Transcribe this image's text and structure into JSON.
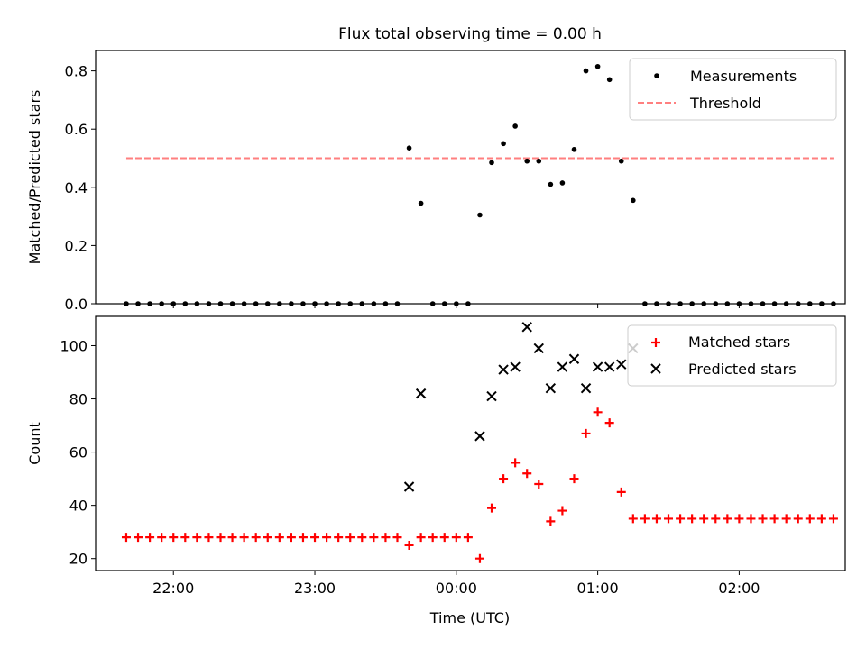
{
  "title": "Flux total observing time = 0.00 h",
  "chart_data": [
    {
      "type": "scatter",
      "panel": "top",
      "title": "Flux total observing time = 0.00 h",
      "xlabel": "",
      "ylabel": "Matched/Predicted stars",
      "ylim": [
        0,
        0.87
      ],
      "yticks": [
        0.0,
        0.2,
        0.4,
        0.6,
        0.8
      ],
      "ytick_labels": [
        "0.0",
        "0.2",
        "0.4",
        "0.6",
        "0.8"
      ],
      "legend": {
        "position": "top-right",
        "entries": [
          "Measurements",
          "Threshold"
        ]
      },
      "threshold": {
        "name": "Threshold",
        "value": 0.5,
        "color": "#ff7f7f",
        "style": "dashed",
        "x_range": [
          "21:40",
          "26:40"
        ]
      },
      "series": [
        {
          "name": "Measurements",
          "marker": "dot",
          "color": "#000000",
          "points": [
            [
              "21:40",
              0
            ],
            [
              "21:45",
              0
            ],
            [
              "21:50",
              0
            ],
            [
              "21:55",
              0
            ],
            [
              "22:00",
              0
            ],
            [
              "22:05",
              0
            ],
            [
              "22:10",
              0
            ],
            [
              "22:15",
              0
            ],
            [
              "22:20",
              0
            ],
            [
              "22:25",
              0
            ],
            [
              "22:30",
              0
            ],
            [
              "22:35",
              0
            ],
            [
              "22:40",
              0
            ],
            [
              "22:45",
              0
            ],
            [
              "22:50",
              0
            ],
            [
              "22:55",
              0
            ],
            [
              "23:00",
              0
            ],
            [
              "23:05",
              0
            ],
            [
              "23:10",
              0
            ],
            [
              "23:15",
              0
            ],
            [
              "23:20",
              0
            ],
            [
              "23:25",
              0
            ],
            [
              "23:30",
              0
            ],
            [
              "23:35",
              0
            ],
            [
              "23:40",
              0.535
            ],
            [
              "23:45",
              0.345
            ],
            [
              "23:50",
              0
            ],
            [
              "23:55",
              0
            ],
            [
              "24:00",
              0
            ],
            [
              "24:05",
              0
            ],
            [
              "24:10",
              0.305
            ],
            [
              "24:15",
              0.485
            ],
            [
              "24:20",
              0.55
            ],
            [
              "24:25",
              0.61
            ],
            [
              "24:30",
              0.49
            ],
            [
              "24:35",
              0.49
            ],
            [
              "24:40",
              0.41
            ],
            [
              "24:45",
              0.415
            ],
            [
              "24:50",
              0.53
            ],
            [
              "24:55",
              0.8
            ],
            [
              "25:00",
              0.815
            ],
            [
              "25:05",
              0.77
            ],
            [
              "25:10",
              0.49
            ],
            [
              "25:15",
              0.355
            ],
            [
              "25:20",
              0
            ],
            [
              "25:25",
              0
            ],
            [
              "25:30",
              0
            ],
            [
              "25:35",
              0
            ],
            [
              "25:40",
              0
            ],
            [
              "25:45",
              0
            ],
            [
              "25:50",
              0
            ],
            [
              "25:55",
              0
            ],
            [
              "26:00",
              0
            ],
            [
              "26:05",
              0
            ],
            [
              "26:10",
              0
            ],
            [
              "26:15",
              0
            ],
            [
              "26:20",
              0
            ],
            [
              "26:25",
              0
            ],
            [
              "26:30",
              0
            ],
            [
              "26:35",
              0
            ],
            [
              "26:40",
              0
            ]
          ]
        }
      ]
    },
    {
      "type": "scatter",
      "panel": "bottom",
      "xlabel": "Time (UTC)",
      "ylabel": "Count",
      "ylim": [
        15.5,
        111
      ],
      "yticks": [
        20,
        40,
        60,
        80,
        100
      ],
      "ytick_labels": [
        "20",
        "40",
        "60",
        "80",
        "100"
      ],
      "xlim": [
        "21:27",
        "26:45"
      ],
      "xticks": [
        "22:00",
        "23:00",
        "24:00",
        "25:00",
        "26:00"
      ],
      "xtick_labels": [
        "22:00",
        "23:00",
        "00:00",
        "01:00",
        "02:00"
      ],
      "legend": {
        "position": "top-right",
        "entries": [
          "Matched stars",
          "Predicted stars"
        ]
      },
      "series": [
        {
          "name": "Matched stars",
          "marker": "plus",
          "color": "#ff0000",
          "points": [
            [
              "21:40",
              28
            ],
            [
              "21:45",
              28
            ],
            [
              "21:50",
              28
            ],
            [
              "21:55",
              28
            ],
            [
              "22:00",
              28
            ],
            [
              "22:05",
              28
            ],
            [
              "22:10",
              28
            ],
            [
              "22:15",
              28
            ],
            [
              "22:20",
              28
            ],
            [
              "22:25",
              28
            ],
            [
              "22:30",
              28
            ],
            [
              "22:35",
              28
            ],
            [
              "22:40",
              28
            ],
            [
              "22:45",
              28
            ],
            [
              "22:50",
              28
            ],
            [
              "22:55",
              28
            ],
            [
              "23:00",
              28
            ],
            [
              "23:05",
              28
            ],
            [
              "23:10",
              28
            ],
            [
              "23:15",
              28
            ],
            [
              "23:20",
              28
            ],
            [
              "23:25",
              28
            ],
            [
              "23:30",
              28
            ],
            [
              "23:35",
              28
            ],
            [
              "23:40",
              25
            ],
            [
              "23:45",
              28
            ],
            [
              "23:50",
              28
            ],
            [
              "23:55",
              28
            ],
            [
              "24:00",
              28
            ],
            [
              "24:05",
              28
            ],
            [
              "24:10",
              20
            ],
            [
              "24:15",
              39
            ],
            [
              "24:20",
              50
            ],
            [
              "24:25",
              56
            ],
            [
              "24:30",
              52
            ],
            [
              "24:35",
              48
            ],
            [
              "24:40",
              34
            ],
            [
              "24:45",
              38
            ],
            [
              "24:50",
              50
            ],
            [
              "24:55",
              67
            ],
            [
              "25:00",
              75
            ],
            [
              "25:05",
              71
            ],
            [
              "25:10",
              45
            ],
            [
              "25:15",
              35
            ],
            [
              "25:20",
              35
            ],
            [
              "25:25",
              35
            ],
            [
              "25:30",
              35
            ],
            [
              "25:35",
              35
            ],
            [
              "25:40",
              35
            ],
            [
              "25:45",
              35
            ],
            [
              "25:50",
              35
            ],
            [
              "25:55",
              35
            ],
            [
              "26:00",
              35
            ],
            [
              "26:05",
              35
            ],
            [
              "26:10",
              35
            ],
            [
              "26:15",
              35
            ],
            [
              "26:20",
              35
            ],
            [
              "26:25",
              35
            ],
            [
              "26:30",
              35
            ],
            [
              "26:35",
              35
            ],
            [
              "26:40",
              35
            ]
          ]
        },
        {
          "name": "Predicted stars",
          "marker": "x",
          "color": "#000000",
          "points": [
            [
              "23:40",
              47
            ],
            [
              "23:45",
              82
            ],
            [
              "24:10",
              66
            ],
            [
              "24:15",
              81
            ],
            [
              "24:20",
              91
            ],
            [
              "24:25",
              92
            ],
            [
              "24:30",
              107
            ],
            [
              "24:35",
              99
            ],
            [
              "24:40",
              84
            ],
            [
              "24:45",
              92
            ],
            [
              "24:50",
              95
            ],
            [
              "24:55",
              84
            ],
            [
              "25:00",
              92
            ],
            [
              "25:05",
              92
            ],
            [
              "25:10",
              93
            ],
            [
              "25:15",
              99
            ]
          ]
        }
      ]
    }
  ]
}
